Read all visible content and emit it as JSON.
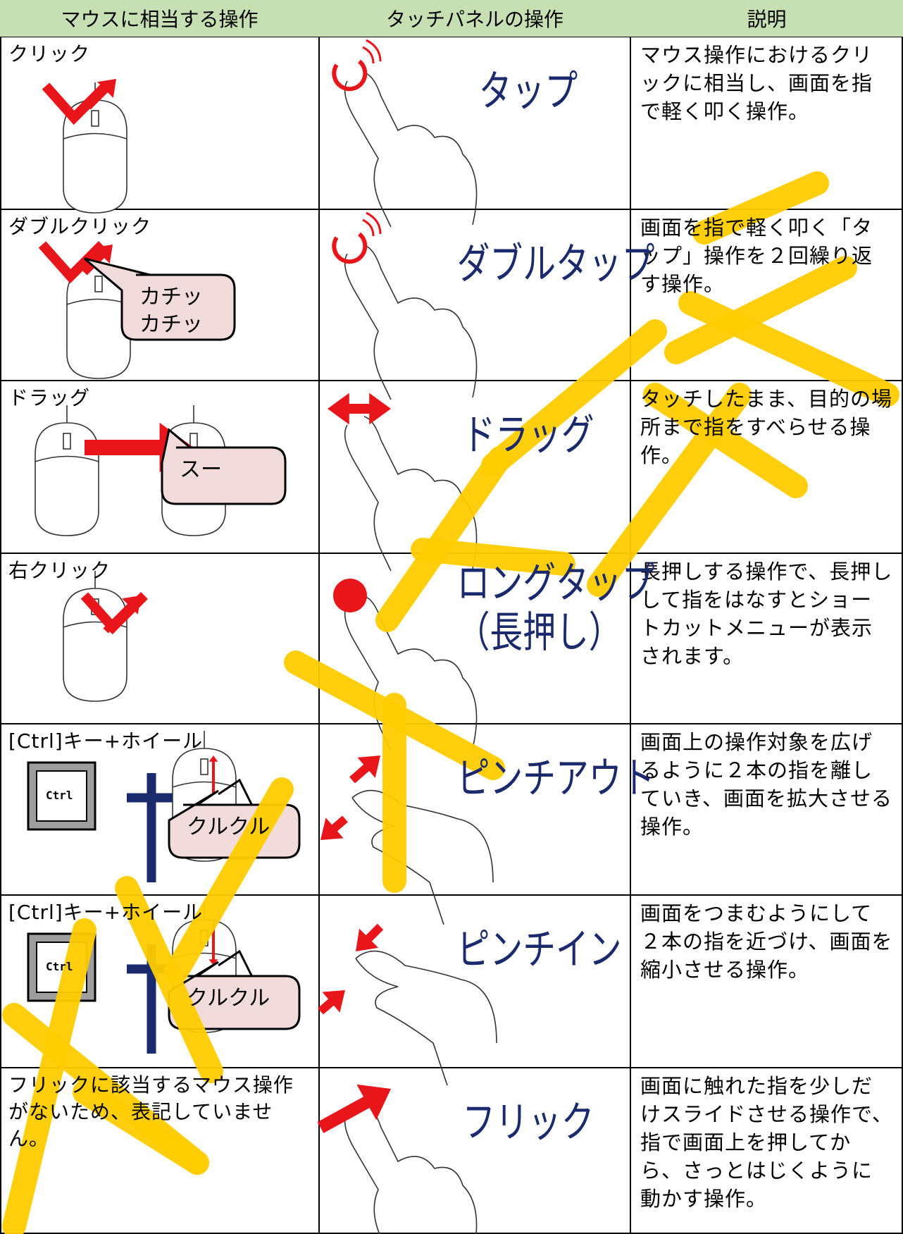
{
  "header": {
    "columns": [
      "マウスに相当する操作",
      "タッチパネルの操作",
      "説明"
    ]
  },
  "rows": [
    {
      "mouse": "クリック",
      "gesture": [
        "タップ"
      ],
      "description": "マウス操作におけるクリックに相当し、画面を指で軽く叩く操作。"
    },
    {
      "mouse": "ダブルクリック",
      "bubble": [
        "カチッ",
        "カチッ"
      ],
      "gesture": [
        "ダブルタップ"
      ],
      "description": "画面を指で軽く叩く「タップ」操作を２回繰り返す操作。"
    },
    {
      "mouse": "ドラッグ",
      "bubble": [
        "スー"
      ],
      "gesture": [
        "ドラッグ"
      ],
      "description": "タッチしたまま、目的の場所まで指をすべらせる操作。"
    },
    {
      "mouse": "右クリック",
      "gesture": [
        "ロングタップ",
        "（長押し）"
      ],
      "description": "長押しする操作で、長押しして指をはなすとショートカットメニューが表示されます。"
    },
    {
      "mouse": "[Ctrl]キー+ホイール",
      "key": "Ctrl",
      "bubble": [
        "クルクル"
      ],
      "gesture": [
        "ピンチアウト"
      ],
      "description": "画面上の操作対象を広げるように２本の指を離していき、画面を拡大させる操作。"
    },
    {
      "mouse": "[Ctrl]キー+ホイール",
      "key": "Ctrl",
      "bubble": [
        "クルクル"
      ],
      "gesture": [
        "ピンチイン"
      ],
      "description": "画面をつまむようにして２本の指を近づけ、画面を縮小させる操作。"
    },
    {
      "mouse": "フリックに該当するマウス操作がないため、表記していません。",
      "gesture": [
        "フリック"
      ],
      "description": "画面に触れた指を少しだけスライドさせる操作で、指で画面上を押してから、さっとはじくように動かす操作。"
    }
  ]
}
